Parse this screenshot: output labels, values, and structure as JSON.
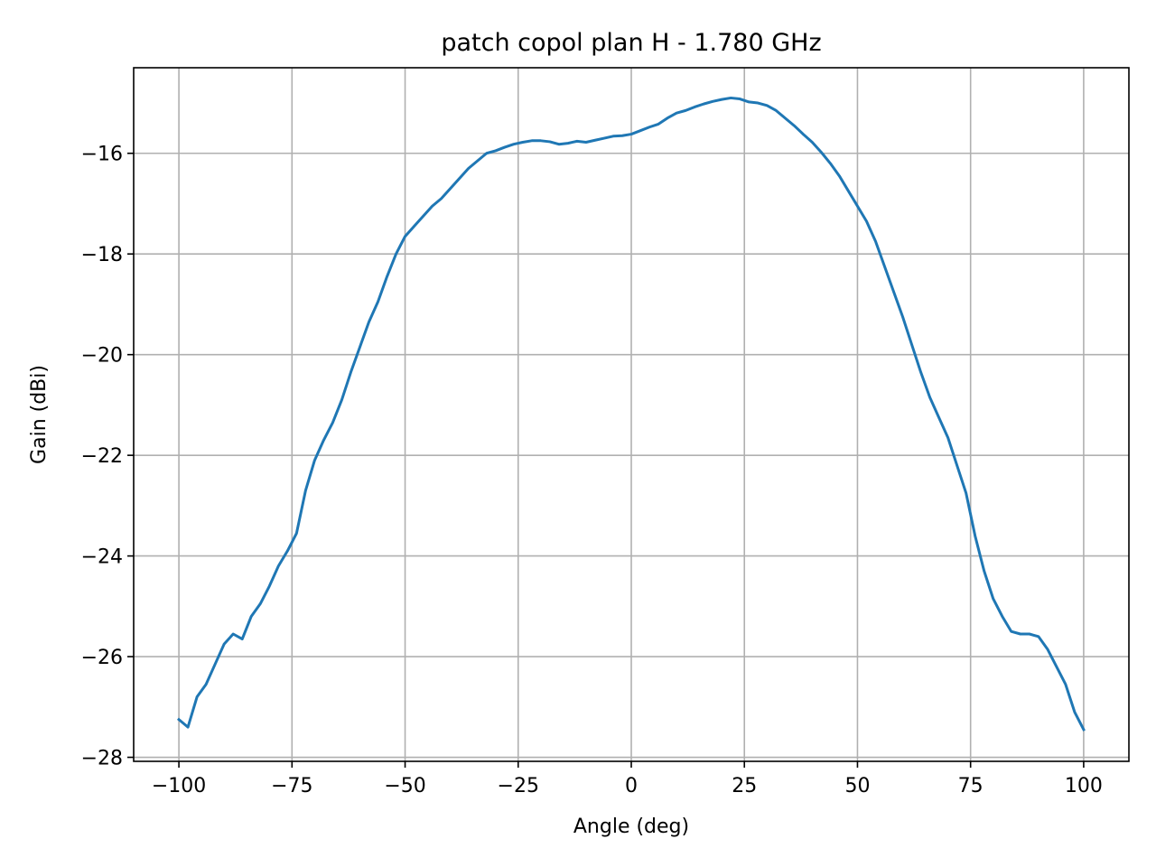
{
  "chart_data": {
    "type": "line",
    "title": "patch copol plan H - 1.780 GHz",
    "xlabel": "Angle (deg)",
    "ylabel": "Gain (dBi)",
    "xlim": [
      -110,
      110
    ],
    "ylim": [
      -28.08,
      -14.3
    ],
    "xticks": [
      -100,
      -75,
      -50,
      -25,
      0,
      25,
      50,
      75,
      100
    ],
    "xtick_labels": [
      "−100",
      "−75",
      "−50",
      "−25",
      "0",
      "25",
      "50",
      "75",
      "100"
    ],
    "yticks": [
      -16,
      -18,
      -20,
      -22,
      -24,
      -26,
      -28
    ],
    "ytick_labels": [
      "−16",
      "−18",
      "−20",
      "−22",
      "−24",
      "−26",
      "−28"
    ],
    "grid": true,
    "series": [
      {
        "color": "#1f77b4",
        "x": [
          -100,
          -98,
          -96,
          -94,
          -92,
          -90,
          -88,
          -86,
          -84,
          -82,
          -80,
          -78,
          -76,
          -74,
          -72,
          -70,
          -68,
          -66,
          -64,
          -62,
          -60,
          -58,
          -56,
          -54,
          -52,
          -50,
          -48,
          -46,
          -44,
          -42,
          -40,
          -38,
          -36,
          -34,
          -32,
          -30,
          -28,
          -26,
          -24,
          -22,
          -20,
          -18,
          -16,
          -14,
          -12,
          -10,
          -8,
          -6,
          -4,
          -2,
          0,
          2,
          4,
          6,
          8,
          10,
          12,
          14,
          16,
          18,
          20,
          22,
          24,
          26,
          28,
          30,
          32,
          34,
          36,
          38,
          40,
          42,
          44,
          46,
          48,
          50,
          52,
          54,
          56,
          58,
          60,
          62,
          64,
          66,
          68,
          70,
          72,
          74,
          76,
          78,
          80,
          82,
          84,
          86,
          88,
          90,
          92,
          94,
          96,
          98,
          100
        ],
        "y": [
          -27.25,
          -27.4,
          -26.8,
          -26.55,
          -26.15,
          -25.75,
          -25.55,
          -25.65,
          -25.2,
          -24.95,
          -24.6,
          -24.2,
          -23.9,
          -23.55,
          -22.7,
          -22.1,
          -21.7,
          -21.35,
          -20.9,
          -20.35,
          -19.85,
          -19.35,
          -18.95,
          -18.45,
          -18.0,
          -17.65,
          -17.45,
          -17.25,
          -17.05,
          -16.9,
          -16.7,
          -16.5,
          -16.3,
          -16.15,
          -16.0,
          -15.95,
          -15.88,
          -15.82,
          -15.78,
          -15.75,
          -15.75,
          -15.77,
          -15.82,
          -15.8,
          -15.76,
          -15.78,
          -15.74,
          -15.7,
          -15.66,
          -15.65,
          -15.62,
          -15.55,
          -15.48,
          -15.42,
          -15.3,
          -15.2,
          -15.15,
          -15.08,
          -15.02,
          -14.97,
          -14.93,
          -14.9,
          -14.92,
          -14.98,
          -15.0,
          -15.05,
          -15.15,
          -15.3,
          -15.45,
          -15.62,
          -15.78,
          -15.98,
          -16.2,
          -16.45,
          -16.75,
          -17.05,
          -17.35,
          -17.75,
          -18.25,
          -18.75,
          -19.25,
          -19.8,
          -20.35,
          -20.85,
          -21.25,
          -21.65,
          -22.2,
          -22.75,
          -23.6,
          -24.3,
          -24.85,
          -25.2,
          -25.5,
          -25.55,
          -25.55,
          -25.6,
          -25.85,
          -26.2,
          -26.55,
          -27.1,
          -27.45
        ]
      }
    ]
  }
}
